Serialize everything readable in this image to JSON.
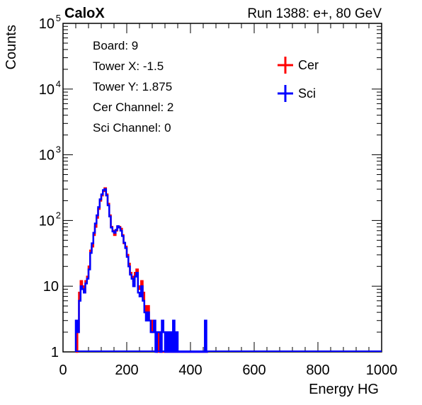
{
  "header": {
    "left_title": "CaloX",
    "right_title": "Run 1388: e+, 80 GeV"
  },
  "info": {
    "lines": [
      "Board: 9",
      "Tower X: -1.5",
      "Tower Y: 1.875",
      "Cer Channel: 2",
      "Sci Channel: 0"
    ]
  },
  "colors": {
    "cer": "#ff0000",
    "sci": "#0000ff",
    "frame": "#000000",
    "background": "#ffffff"
  },
  "chart_data": {
    "type": "line",
    "xlabel": "Energy HG",
    "ylabel": "Counts",
    "xlim": [
      0,
      1000
    ],
    "ylim": [
      1,
      100000
    ],
    "log_y": true,
    "grid": false,
    "legend_position": "top-right",
    "x_ticks": [
      "0",
      "200",
      "400",
      "600",
      "800",
      "1000"
    ],
    "y_ticks": [
      {
        "value": 1,
        "base": "1",
        "exp": ""
      },
      {
        "value": 10,
        "base": "10",
        "exp": ""
      },
      {
        "value": 100,
        "base": "10",
        "exp": "2"
      },
      {
        "value": 1000,
        "base": "10",
        "exp": "3"
      },
      {
        "value": 10000,
        "base": "10",
        "exp": "4"
      },
      {
        "value": 100000,
        "base": "10",
        "exp": "5"
      }
    ],
    "series": [
      {
        "name": "Cer",
        "color": "#ff0000",
        "x": [
          40,
          45,
          50,
          55,
          60,
          65,
          70,
          75,
          80,
          85,
          90,
          95,
          100,
          105,
          110,
          115,
          120,
          125,
          130,
          135,
          140,
          145,
          150,
          155,
          160,
          165,
          170,
          175,
          180,
          185,
          190,
          195,
          200,
          205,
          210,
          215,
          220,
          225,
          230,
          235,
          240,
          245,
          250,
          255,
          260,
          265,
          270,
          275,
          280,
          285,
          290,
          295,
          300,
          305,
          310,
          315,
          320,
          325,
          330,
          335,
          340,
          345,
          350,
          355,
          360,
          365,
          370,
          375,
          380,
          385,
          390,
          395,
          400,
          405,
          410,
          415,
          420,
          425,
          430,
          435,
          440,
          445,
          450
        ],
        "values": [
          1,
          2,
          8,
          12,
          10,
          8,
          12,
          14,
          20,
          35,
          40,
          60,
          80,
          110,
          150,
          200,
          240,
          280,
          310,
          250,
          180,
          120,
          80,
          70,
          60,
          70,
          80,
          80,
          75,
          60,
          45,
          40,
          30,
          22,
          16,
          14,
          12,
          16,
          18,
          10,
          9,
          12,
          8,
          5,
          4,
          5,
          3,
          3,
          2,
          2,
          2,
          1,
          2,
          1,
          1,
          1,
          1,
          1,
          1,
          1,
          1,
          1,
          1,
          1,
          1,
          1,
          1,
          1,
          1,
          1,
          1,
          1,
          1,
          1,
          1,
          1,
          1,
          1,
          1,
          1,
          1,
          1,
          1
        ]
      },
      {
        "name": "Sci",
        "color": "#0000ff",
        "x": [
          40,
          45,
          50,
          55,
          60,
          65,
          70,
          75,
          80,
          85,
          90,
          95,
          100,
          105,
          110,
          115,
          120,
          125,
          130,
          135,
          140,
          145,
          150,
          155,
          160,
          165,
          170,
          175,
          180,
          185,
          190,
          195,
          200,
          205,
          210,
          215,
          220,
          225,
          230,
          235,
          240,
          245,
          250,
          255,
          260,
          265,
          270,
          275,
          280,
          285,
          290,
          295,
          300,
          305,
          310,
          315,
          320,
          325,
          330,
          335,
          340,
          345,
          350,
          355,
          360,
          365,
          370,
          375,
          380,
          385,
          390,
          395,
          400,
          405,
          410,
          415,
          420,
          425,
          430,
          435,
          440,
          445,
          450
        ],
        "values": [
          3,
          2,
          6,
          10,
          9,
          8,
          11,
          13,
          18,
          32,
          45,
          65,
          90,
          120,
          160,
          210,
          250,
          290,
          300,
          240,
          170,
          115,
          78,
          68,
          65,
          72,
          82,
          78,
          70,
          58,
          46,
          38,
          28,
          20,
          15,
          13,
          10,
          14,
          16,
          8,
          7,
          10,
          6,
          4,
          3,
          4,
          3,
          2,
          2,
          3,
          1,
          2,
          2,
          1,
          3,
          2,
          1,
          2,
          1,
          2,
          1,
          3,
          1,
          2,
          1,
          1,
          1,
          1,
          1,
          1,
          1,
          1,
          1,
          1,
          1,
          1,
          1,
          1,
          1,
          1,
          1,
          3,
          1
        ]
      }
    ]
  }
}
